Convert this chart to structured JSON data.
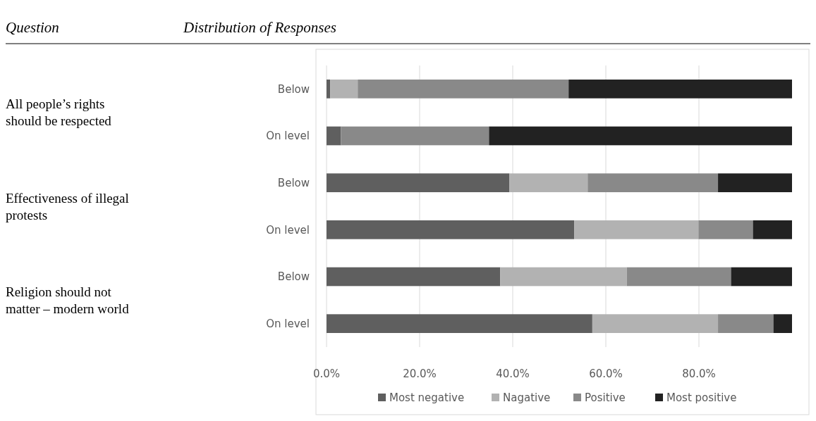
{
  "chart_data": {
    "type": "bar",
    "orientation": "horizontal",
    "stacked": true,
    "title": "Distribution of Responses",
    "categories": [
      "Below",
      "On level",
      "Below",
      "On level",
      "Below",
      "On level"
    ],
    "annotations": [
      "Question",
      "All people’s rights should be respected",
      "Effectiveness of illegal protests",
      "Religion should not matter – modern world"
    ],
    "series": [
      {
        "name": "Most negative",
        "color": "#5f5f5f",
        "values": [
          0.8,
          3.1,
          39.3,
          53.2,
          37.3,
          57.1
        ]
      },
      {
        "name": "Nagative",
        "color": "#b2b2b2",
        "values": [
          5.9,
          0,
          16.8,
          26.7,
          27.2,
          27.0
        ]
      },
      {
        "name": "Positive",
        "color": "#898989",
        "values": [
          45.3,
          31.8,
          28.0,
          11.7,
          22.4,
          11.9
        ]
      },
      {
        "name": "Most positive",
        "color": "#222222",
        "values": [
          48.0,
          65.1,
          15.9,
          8.4,
          13.1,
          4.0
        ]
      }
    ],
    "xlim": [
      0,
      100
    ],
    "xticks": [
      {
        "value": 0,
        "label": "0.0%"
      },
      {
        "value": 20,
        "label": "20.0%"
      },
      {
        "value": 40,
        "label": "40.0%"
      },
      {
        "value": 60,
        "label": "60.0%"
      },
      {
        "value": 80,
        "label": "80.0%"
      }
    ],
    "grid": "x",
    "legend": "bottom"
  }
}
